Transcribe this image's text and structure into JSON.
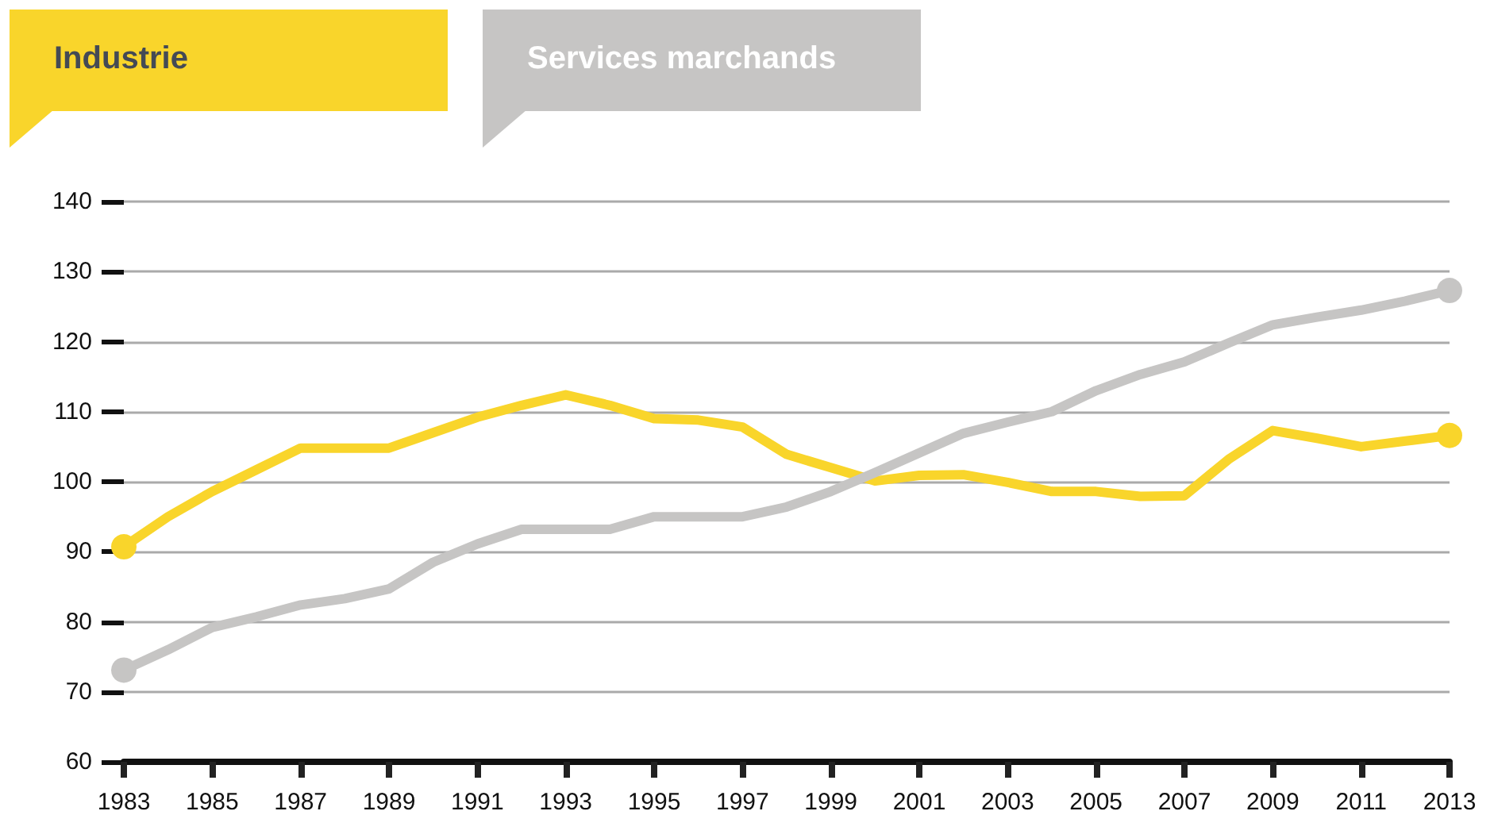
{
  "chart_data": {
    "type": "line",
    "categories": [
      "1983",
      null,
      "1985",
      null,
      "1987",
      null,
      "1989",
      null,
      "1991",
      null,
      "1993",
      null,
      "1995",
      null,
      "1997",
      null,
      "1999",
      null,
      "2001",
      null,
      "2003",
      null,
      "2005",
      null,
      "2007",
      null,
      "2009",
      null,
      "2011",
      null,
      "2013"
    ],
    "series": [
      {
        "name": "Industrie",
        "color": "#f9d52b",
        "values": [
          90.7,
          95,
          98.6,
          101.7,
          104.8,
          104.8,
          104.8,
          107,
          109.2,
          110.9,
          112.4,
          110.9,
          109,
          108.8,
          107.8,
          103.9,
          102,
          100.1,
          100.9,
          101,
          99.9,
          98.6,
          98.6,
          97.9,
          98,
          103.2,
          107.3,
          106.2,
          105,
          105.8,
          106.6
        ]
      },
      {
        "name": "Services marchands",
        "color": "#c6c5c4",
        "values": [
          73.1,
          76,
          79.2,
          80.7,
          82.4,
          83.3,
          84.7,
          88.5,
          91.1,
          93.2,
          93.2,
          93.2,
          95,
          95,
          95,
          96.4,
          98.6,
          101.3,
          104.1,
          106.9,
          108.5,
          110,
          113,
          115.3,
          117.1,
          119.8,
          122.4,
          123.5,
          124.5,
          125.8,
          127.3
        ]
      }
    ],
    "ylim": [
      60,
      140
    ],
    "yticks": [
      60,
      70,
      80,
      90,
      100,
      110,
      120,
      130,
      140
    ],
    "grid": "y",
    "legend": "top left",
    "marker": "none",
    "line_style": "solid"
  }
}
